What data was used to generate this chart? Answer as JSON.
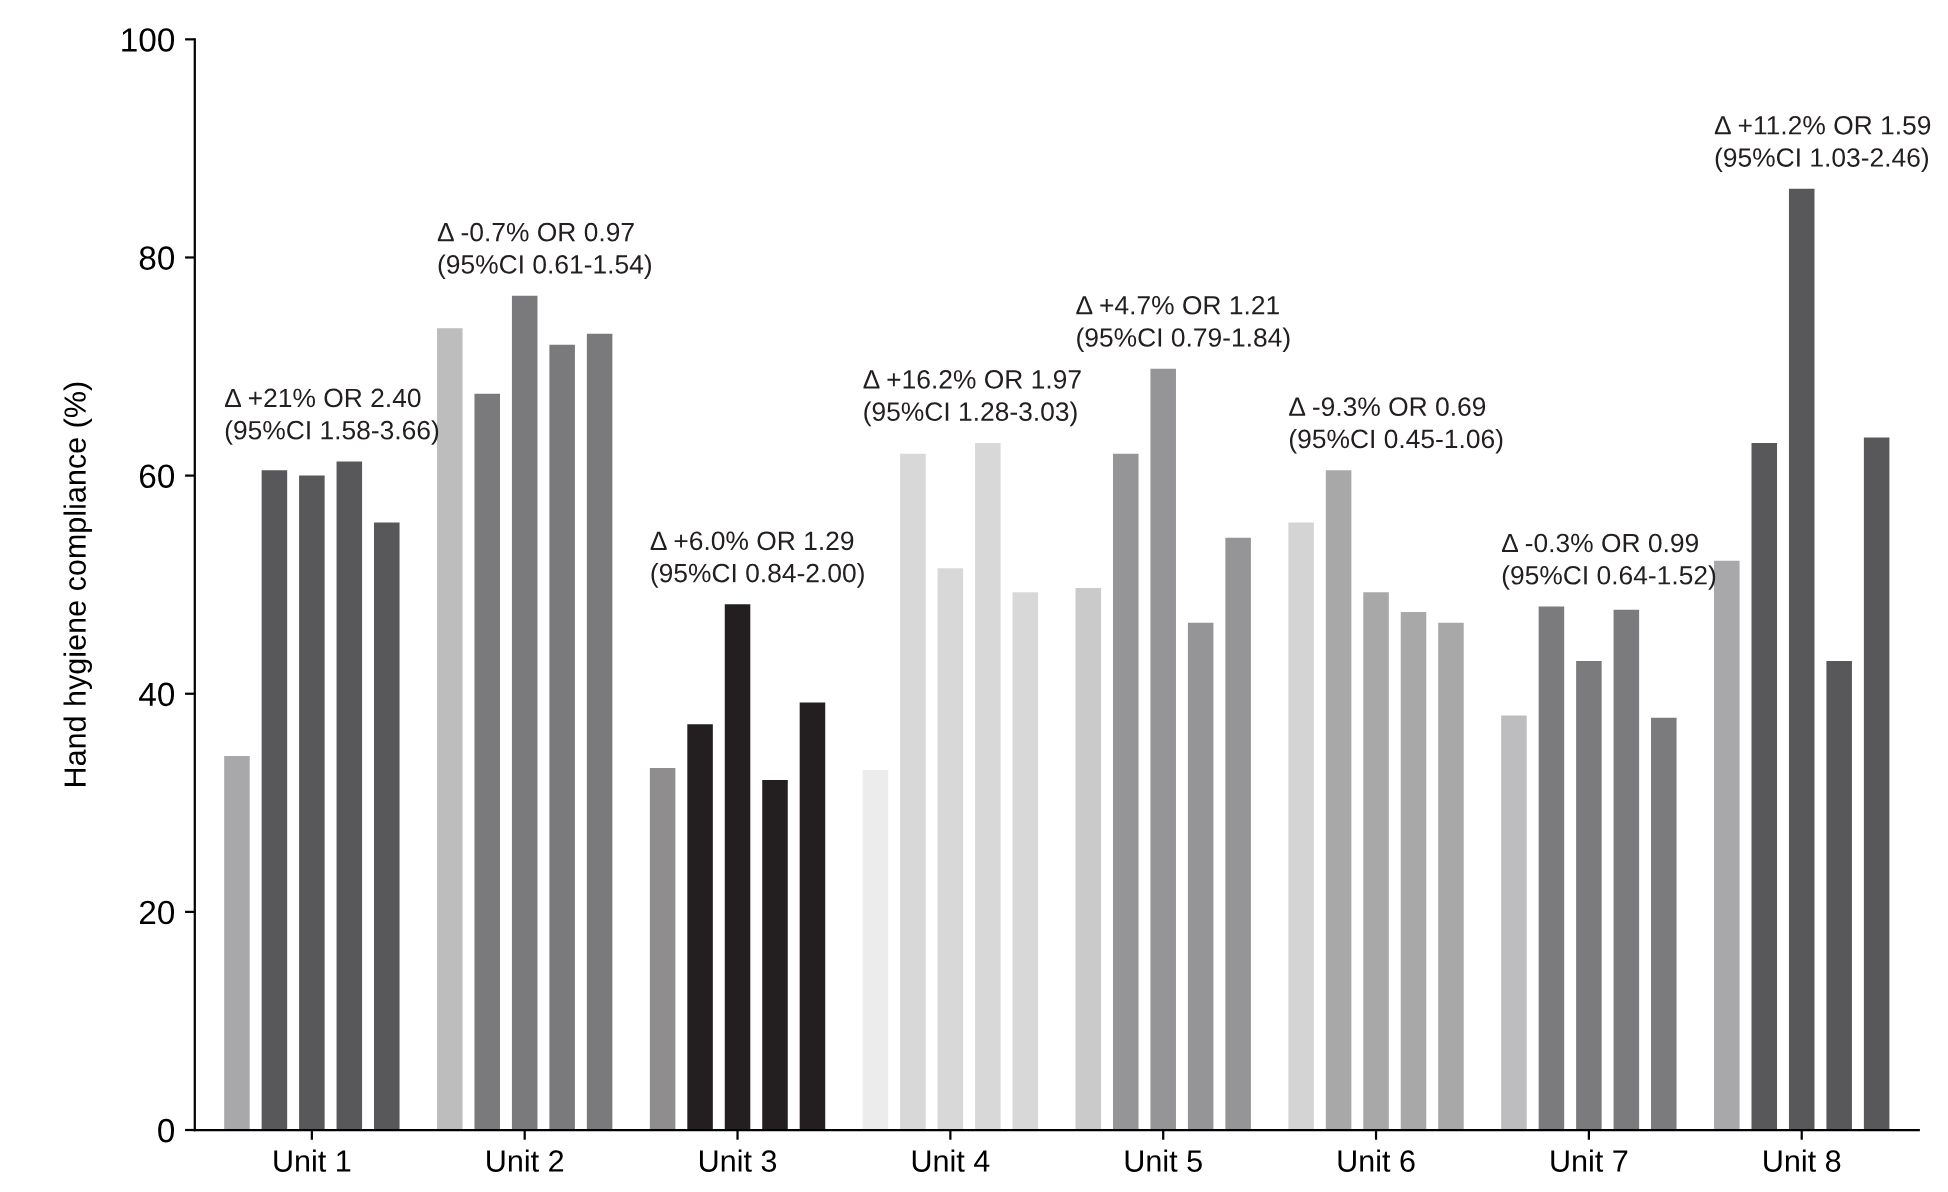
{
  "chart_data": {
    "type": "bar",
    "ylabel": "Hand hygiene compliance (%)",
    "categories": [
      "Unit 1",
      "Unit 2",
      "Unit 3",
      "Unit 4",
      "Unit 5",
      "Unit 6",
      "Unit 7",
      "Unit 8"
    ],
    "series": [
      {
        "colors": [
          "#a8a8aa",
          "#bdbdbe",
          "#8f8d8e",
          "#ececec",
          "#cacacb",
          "#d4d4d4",
          "#bdbdbf",
          "#a8a8aa"
        ],
        "values": [
          34.3,
          73.5,
          33.2,
          33,
          49.7,
          55.7,
          38,
          52.2
        ]
      },
      {
        "colors": [
          "#58585a",
          "#7a7a7c",
          "#231f20",
          "#d8d8d8",
          "#959597",
          "#a8a8a8",
          "#7b7b7e",
          "#58585a"
        ],
        "values": [
          60.5,
          67.5,
          37.2,
          62,
          62,
          60.5,
          48,
          63
        ]
      },
      {
        "colors": [
          "#58585a",
          "#7a7a7c",
          "#231f20",
          "#d8d8d8",
          "#959597",
          "#a8a8a8",
          "#7b7b7e",
          "#58585a"
        ],
        "values": [
          60,
          76.5,
          48.2,
          51.5,
          69.8,
          49.3,
          43,
          86.3
        ]
      },
      {
        "colors": [
          "#58585a",
          "#7a7a7c",
          "#231f20",
          "#d8d8d8",
          "#959597",
          "#a8a8a8",
          "#7b7b7e",
          "#58585a"
        ],
        "values": [
          61.3,
          72,
          32.1,
          63,
          46.5,
          47.5,
          47.7,
          43
        ]
      },
      {
        "colors": [
          "#58585a",
          "#7a7a7c",
          "#231f20",
          "#d8d8d8",
          "#959597",
          "#a8a8a8",
          "#7b7b7e",
          "#58585a"
        ],
        "values": [
          55.7,
          73,
          39.2,
          49.3,
          54.3,
          46.5,
          37.8,
          63.5
        ]
      }
    ],
    "ylim": [
      0,
      100
    ],
    "yticks": [
      0,
      20,
      40,
      60,
      80,
      100
    ],
    "grid": false,
    "legend": false,
    "annotations": [
      "Δ +21% OR 2.40\n(95%CI 1.58-3.66)",
      "Δ -0.7% OR 0.97\n(95%CI 0.61-1.54)",
      "Δ +6.0% OR 1.29\n(95%CI 0.84-2.00)",
      "Δ +16.2% OR 1.97\n(95%CI 1.28-3.03)",
      "Δ +4.7% OR 1.21\n(95%CI 0.79-1.84)",
      "Δ -9.3% OR 0.69\n(95%CI 0.45-1.06)",
      "Δ -0.3% OR 0.99\n(95%CI 0.64-1.52)",
      "Δ +11.2% OR 1.59\n(95%CI 1.03-2.46)"
    ]
  }
}
